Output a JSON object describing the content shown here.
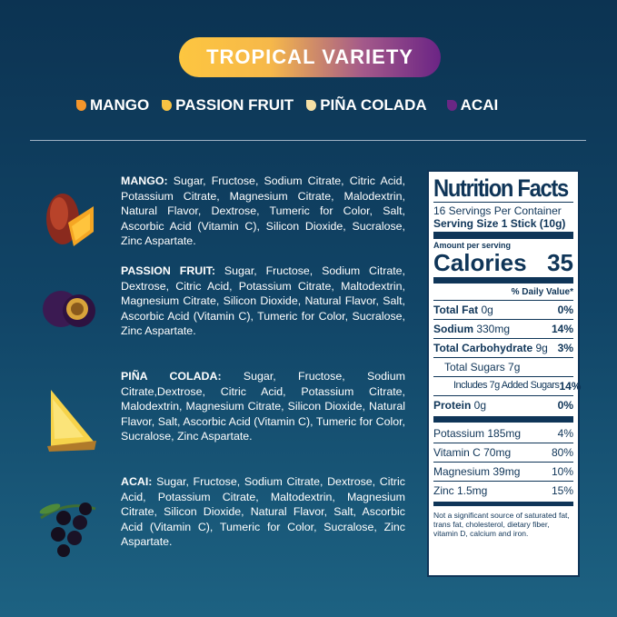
{
  "title": "TROPICAL VARIETY",
  "flavors": [
    {
      "label": "MANGO",
      "color": "#f4952b"
    },
    {
      "label": "PASSION FRUIT",
      "color": "#f8c243"
    },
    {
      "label": "PIÑA COLADA",
      "color": "#f5dfa5"
    },
    {
      "label": "ACAI",
      "color": "#6a2784"
    }
  ],
  "ingredients": [
    {
      "name": "MANGO:",
      "text": " Sugar, Fructose, Sodium Citrate, Citric Acid, Potassium Citrate, Magnesium Citrate, Malodextrin, Natural Flavor, Dextrose, Tumeric for Color, Salt, Ascorbic Acid (Vitamin C), Silicon Dioxide,  Sucralose, Zinc Aspartate."
    },
    {
      "name": "PASSION FRUIT:",
      "text": " Sugar, Fructose, Sodium Citrate, Dextrose, Citric Acid, Potassium Citrate, Maltodextrin, Magnesium Citrate, Silicon Dioxide, Natural Flavor, Salt, Ascorbic Acid (Vitamin C), Tumeric for Color, Sucralose, Zinc Aspartate."
    },
    {
      "name": "PIÑA COLADA:",
      "text": " Sugar, Fructose, Sodium Citrate,Dextrose, Citric Acid, Potassium Citrate, Malodextrin, Magnesium Citrate, Silicon Dioxide, Natural Flavor,  Salt, Ascorbic Acid (Vitamin C), Tumeric for Color, Sucralose, Zinc Aspartate."
    },
    {
      "name": "ACAI:",
      "text": " Sugar, Fructose, Sodium Citrate, Dextrose, Citric Acid, Potassium Citrate, Maltodextrin, Magnesium Citrate, Silicon Dioxide,  Natural Flavor, Salt, Ascorbic Acid (Vitamin C), Tumeric for Color,  Sucralose, Zinc Aspartate."
    }
  ],
  "nutrition": {
    "title": "Nutrition Facts",
    "servings": "16 Servings Per Container",
    "serving_size": "Serving Size 1 Stick (10g)",
    "amount": "Amount per serving",
    "calories_label": "Calories",
    "calories": "35",
    "dv": "% Daily Value*",
    "rows": [
      {
        "label": "Total Fat",
        "amount": " 0g",
        "pct": "0%"
      },
      {
        "label": "Sodium",
        "amount": " 330mg",
        "pct": "14%"
      },
      {
        "label": "Total Carbohydrate",
        "amount": " 9g",
        "pct": "3%"
      }
    ],
    "sugars": "Total Sugars 7g",
    "added": "Includes 7g Added Sugars",
    "added_pct": "14%",
    "protein": {
      "label": "Protein",
      "amount": " 0g",
      "pct": "0%"
    },
    "minerals": [
      {
        "label": "Potassium 185mg",
        "pct": "4%"
      },
      {
        "label": "Vitamin C 70mg",
        "pct": "80%"
      },
      {
        "label": "Magnesium 39mg",
        "pct": "10%"
      },
      {
        "label": "Zinc 1.5mg",
        "pct": "15%"
      }
    ],
    "footnote": "Not a significant source of saturated fat, trans fat, cholesterol, dietary fiber, vitamin D, calcium and iron."
  }
}
